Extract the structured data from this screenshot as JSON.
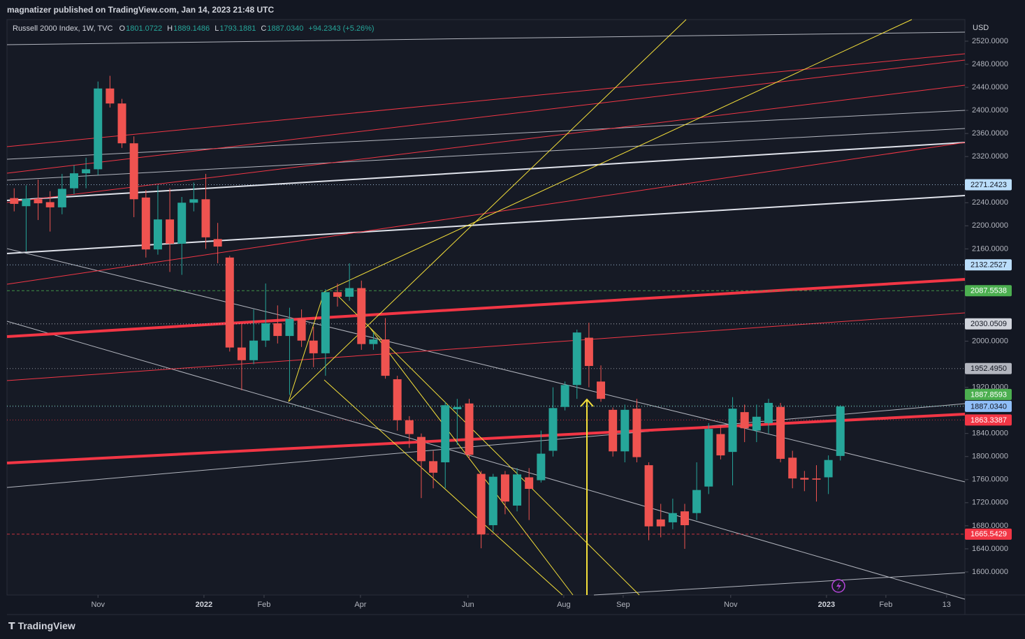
{
  "header": {
    "publisher": "magnatizer published on TradingView.com, Jan 14, 2023 21:48 UTC",
    "brand": "TradingView"
  },
  "chart_data": {
    "type": "candlestick",
    "title": "Russell 2000 Index, 1W, TVC",
    "currency": "USD",
    "header_values": {
      "open_key": "O",
      "open": "1801.0722",
      "high_key": "H",
      "high": "1889.1486",
      "low_key": "L",
      "low": "1793.1881",
      "close_key": "C",
      "close": "1887.0340",
      "change": "+94.2343 (+5.26%)"
    },
    "open": [
      2248,
      2234,
      2246,
      2241,
      2232,
      2265,
      2291,
      2298,
      2438,
      2412,
      2343,
      2249,
      2159,
      2211,
      2169,
      2240,
      2246,
      2177,
      2145,
      1989,
      1967,
      2001,
      2031,
      2009,
      2039,
      2001,
      1979,
      2085,
      2077,
      2092,
      1995,
      2003,
      1934,
      1863,
      1834,
      1792,
      1790,
      1882,
      1892,
      1770,
      1681,
      1769,
      1715,
      1764,
      1759,
      1810,
      1886,
      1924,
      2006,
      1930,
      1881,
      1809,
      1883,
      1785,
      1691,
      1686,
      1705,
      1702,
      1748,
      1839,
      1808,
      1877,
      1845,
      1858,
      1886,
      1798,
      1763,
      1762,
      1764,
      1801.0722
    ],
    "high": [
      2265,
      2270,
      2280,
      2260,
      2290,
      2305,
      2318,
      2450,
      2460,
      2420,
      2355,
      2262,
      2270,
      2265,
      2250,
      2275,
      2290,
      2205,
      2148,
      2030,
      2055,
      2100,
      2062,
      2058,
      2055,
      2025,
      2090,
      2100,
      2135,
      2105,
      2015,
      2040,
      1940,
      1870,
      1840,
      1810,
      1895,
      1900,
      1900,
      1775,
      1770,
      1775,
      1780,
      1780,
      1845,
      1920,
      1930,
      2020,
      2032,
      1958,
      1885,
      1890,
      1900,
      1790,
      1718,
      1727,
      1718,
      1790,
      1858,
      1855,
      1903,
      1890,
      1890,
      1900,
      1893,
      1810,
      1775,
      1785,
      1802,
      1889.1486
    ],
    "low": [
      2225,
      2156,
      2210,
      2190,
      2220,
      2255,
      2265,
      2288,
      2405,
      2335,
      2215,
      2145,
      2150,
      2120,
      2115,
      2225,
      2160,
      2135,
      1982,
      1915,
      1960,
      1990,
      1996,
      1907,
      1990,
      1955,
      1940,
      2060,
      2070,
      1985,
      1985,
      1935,
      1845,
      1815,
      1728,
      1745,
      1745,
      1820,
      1795,
      1641,
      1670,
      1700,
      1705,
      1690,
      1755,
      1800,
      1880,
      1900,
      1920,
      1895,
      1800,
      1790,
      1790,
      1655,
      1660,
      1674,
      1640,
      1690,
      1735,
      1795,
      1750,
      1825,
      1825,
      1840,
      1790,
      1745,
      1740,
      1722,
      1735,
      1793.1881
    ],
    "close": [
      2238,
      2247,
      2239,
      2232,
      2264,
      2291,
      2298,
      2438,
      2412,
      2343,
      2246,
      2159,
      2211,
      2169,
      2240,
      2246,
      2180,
      2164,
      1989,
      1967,
      2001,
      2031,
      2009,
      2039,
      2001,
      1979,
      2085,
      2077,
      2092,
      1995,
      2003,
      1940,
      1863,
      1839,
      1792,
      1772,
      1889,
      1886,
      1803,
      1665,
      1765,
      1722,
      1769,
      1744,
      1805,
      1884,
      1924,
      2015,
      1957,
      1900,
      1809,
      1881,
      1799,
      1679,
      1679,
      1702,
      1681,
      1742,
      1848,
      1802,
      1883,
      1849,
      1869,
      1893,
      1796,
      1762,
      1760,
      1760,
      1794,
      1887.034
    ],
    "up_color": "#26a69a",
    "down_color": "#ef5350",
    "xlim": [
      -0.6,
      79.4
    ],
    "xticks": [
      {
        "value": 7,
        "label": "Nov"
      },
      {
        "value": 15.85,
        "label": "2022"
      },
      {
        "value": 20.87,
        "label": "Feb"
      },
      {
        "value": 28.92,
        "label": "Apr"
      },
      {
        "value": 37.9,
        "label": "Jun"
      },
      {
        "value": 45.9,
        "label": "Aug"
      },
      {
        "value": 50.86,
        "label": "Sep"
      },
      {
        "value": 59.84,
        "label": "Nov"
      },
      {
        "value": 67.84,
        "label": "2023"
      },
      {
        "value": 72.8,
        "label": "Feb"
      },
      {
        "value": 77.87,
        "label": "13"
      }
    ],
    "ylim": [
      1560,
      2557.5
    ],
    "yticks": [
      {
        "value": 1600,
        "label": "1600.0000"
      },
      {
        "value": 1640,
        "label": "1640.0000"
      },
      {
        "value": 1680,
        "label": "1680.0000"
      },
      {
        "value": 1720,
        "label": "1720.0000"
      },
      {
        "value": 1760,
        "label": "1760.0000"
      },
      {
        "value": 1800,
        "label": "1800.0000"
      },
      {
        "value": 1840,
        "label": "1840.0000"
      },
      {
        "value": 1920,
        "label": "1920.0000"
      },
      {
        "value": 2000,
        "label": "2000.0000"
      },
      {
        "value": 2160,
        "label": "2160.0000"
      },
      {
        "value": 2200,
        "label": "2200.0000"
      },
      {
        "value": 2240,
        "label": "2240.0000"
      },
      {
        "value": 2320,
        "label": "2320.0000"
      },
      {
        "value": 2360,
        "label": "2360.0000"
      },
      {
        "value": 2400,
        "label": "2400.0000"
      },
      {
        "value": 2440,
        "label": "2440.0000"
      },
      {
        "value": 2480,
        "label": "2480.0000"
      },
      {
        "value": 2520,
        "label": "2520.0000"
      }
    ],
    "price_labels": [
      {
        "value": 2271.2423,
        "label": "2271.2423",
        "color": "#bbdefb",
        "text_color": "#131722",
        "line": "dotted"
      },
      {
        "value": 2132.2527,
        "label": "2132.2527",
        "color": "#bbdefb",
        "text_color": "#131722",
        "line": "dotted"
      },
      {
        "value": 2087.5538,
        "label": "2087.5538",
        "color": "#4caf50",
        "text_color": "#ffffff",
        "line": "dashed"
      },
      {
        "value": 2030.0509,
        "label": "2030.0509",
        "color": "#d1d4dc",
        "text_color": "#131722",
        "line": "dotted"
      },
      {
        "value": 1952.495,
        "label": "1952.4950",
        "color": "#b2b5be",
        "text_color": "#131722",
        "line": "dotted"
      },
      {
        "value": 1887.8593,
        "label": "1887.8593",
        "color": "#4caf50",
        "text_color": "#ffffff",
        "line": "dotted"
      },
      {
        "value": 1887.034,
        "label": "1887.0340",
        "color": "#90bff9",
        "text_color": "#131722",
        "line": "dotted"
      },
      {
        "value": 1863.3387,
        "label": "1863.3387",
        "color": "#f23645",
        "text_color": "#ffffff",
        "line": "dotted"
      },
      {
        "value": 1665.5429,
        "label": "1665.5429",
        "color": "#f23645",
        "text_color": "#ffffff",
        "line": "dashed"
      }
    ]
  }
}
